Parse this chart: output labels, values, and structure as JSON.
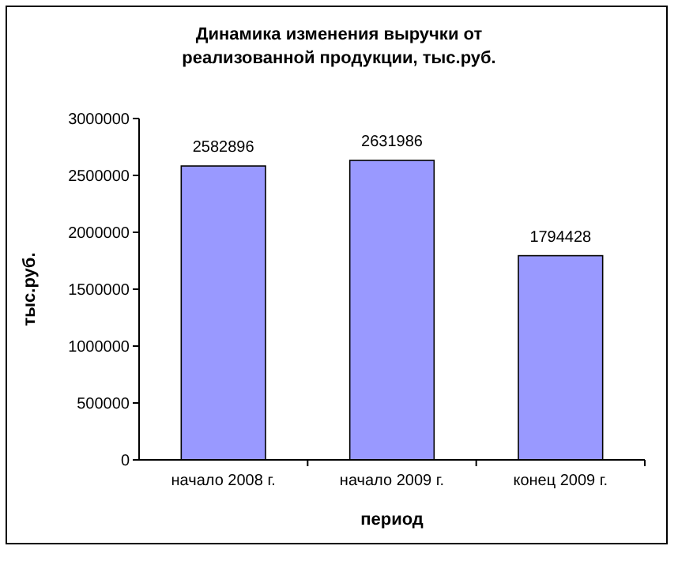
{
  "chart_data": {
    "type": "bar",
    "title": "Динамика изменения выручки от\nреализованной продукции, тыс.руб.",
    "xlabel": "период",
    "ylabel": "тыс.руб.",
    "categories": [
      "начало 2008 г.",
      "начало 2009 г.",
      "конец 2009 г."
    ],
    "values": [
      2582896,
      2631986,
      1794428
    ],
    "color": "#9999ff",
    "ylim": [
      0,
      3000000
    ],
    "yticks": [
      0,
      500000,
      1000000,
      1500000,
      2000000,
      2500000,
      3000000
    ],
    "grid": false,
    "data_labels": true
  }
}
